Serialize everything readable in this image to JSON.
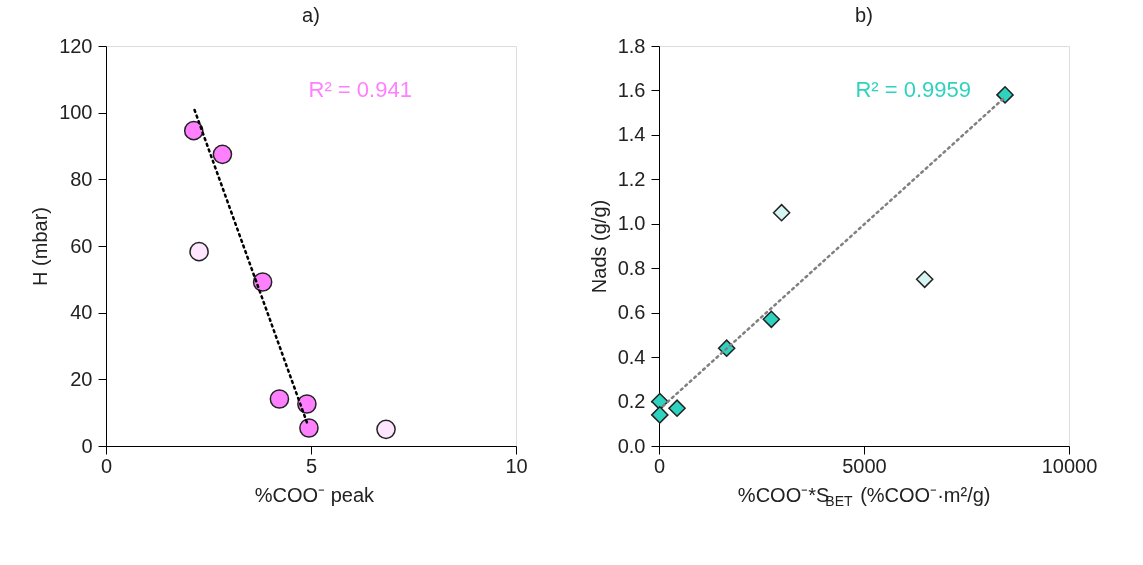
{
  "chart_data": [
    {
      "type": "scatter",
      "title": "a)",
      "xlabel": "%COO⁻ peak",
      "ylabel": "H (mbar)",
      "xlim": [
        0,
        10
      ],
      "xticks": [
        0,
        5,
        10
      ],
      "ylim": [
        0,
        120
      ],
      "yticks": [
        0,
        20,
        40,
        60,
        80,
        100,
        120
      ],
      "grid": false,
      "marker": "circle",
      "annotations": [
        "R² = 0.941"
      ],
      "series": [
        {
          "color": "#ff80ff",
          "x": [
            2.14,
            2.84,
            3.82,
            4.23,
            4.9,
            4.95
          ],
          "values": [
            94.6,
            87.5,
            49.2,
            14.1,
            12.6,
            5.4
          ]
        },
        {
          "color": "#ffe6ff",
          "x": [
            2.27,
            6.83
          ],
          "values": [
            58.3,
            5.0
          ]
        },
        {
          "type": "line",
          "color": "#000000",
          "line_style": "dotted",
          "marker": "none",
          "x": [
            2.16,
            4.92
          ],
          "values": [
            100.8,
            6.4
          ]
        }
      ]
    },
    {
      "type": "scatter",
      "title": "b)",
      "xlabel": "%COO⁻*S$_{BET}$ (%COO⁻·m²/g)",
      "ylabel": "Nads (g/g)",
      "xlim": [
        0,
        10000
      ],
      "xticks": [
        0,
        5000,
        10000
      ],
      "ylim": [
        0,
        1.8
      ],
      "yticks": [
        {
          "value": 0,
          "label": "0.0"
        },
        0.2,
        0.4,
        0.6,
        0.8,
        {
          "value": 1,
          "label": "1.0"
        },
        1.2,
        1.4,
        1.6,
        1.8
      ],
      "grid": false,
      "marker": "diamond",
      "annotations": [
        "R² = 0.9959"
      ],
      "series": [
        {
          "color": "#2ed3c0",
          "x": [
            8440,
            2740,
            1650,
            440,
            20,
            20
          ],
          "values": [
            1.58,
            0.57,
            0.44,
            0.17,
            0.2,
            0.14
          ]
        },
        {
          "color": "#d5f5f2",
          "x": [
            2990,
            6480
          ],
          "values": [
            1.05,
            0.75
          ]
        },
        {
          "type": "line",
          "color": "#808080",
          "line_style": "dotted",
          "marker": "none",
          "x": [
            100,
            8440
          ],
          "values": [
            0.18,
            1.57
          ]
        }
      ]
    }
  ]
}
